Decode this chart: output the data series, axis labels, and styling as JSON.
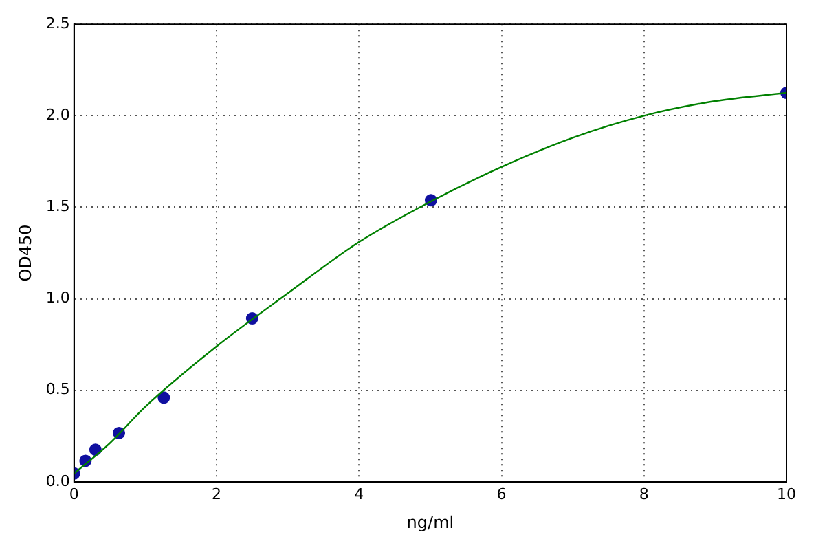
{
  "chart_data": {
    "type": "scatter",
    "xlabel": "ng/ml",
    "ylabel": "OD450",
    "xlim": [
      0,
      10
    ],
    "xticks": [
      0,
      2,
      4,
      6,
      8,
      10
    ],
    "ylim": [
      0,
      2.5
    ],
    "yticks": [
      {
        "value": 0,
        "label": "0.0"
      },
      {
        "value": 0.5,
        "label": "0.5"
      },
      {
        "value": 1,
        "label": "1.0"
      },
      {
        "value": 1.5,
        "label": "1.5"
      },
      {
        "value": 2,
        "label": "2.0"
      },
      {
        "value": 2.5,
        "label": "2.5"
      }
    ],
    "grid": true,
    "legend": false,
    "series": [
      {
        "type": "line",
        "color": "#008000",
        "marker": "none",
        "line_style": "solid",
        "x": [
          0,
          0.5,
          1,
          2,
          3,
          4,
          5,
          6,
          7,
          8,
          9,
          10
        ],
        "values": [
          0.045,
          0.21,
          0.41,
          0.74,
          1.03,
          1.31,
          1.53,
          1.72,
          1.88,
          2.0,
          2.08,
          2.125
        ]
      },
      {
        "color": "#1010a0",
        "marker": "circle",
        "x": [
          0,
          0.16,
          0.3,
          0.63,
          1.26,
          2.5,
          5.01,
          10
        ],
        "values": [
          0.045,
          0.114,
          0.175,
          0.266,
          0.46,
          0.893,
          1.538,
          2.125
        ]
      }
    ]
  }
}
